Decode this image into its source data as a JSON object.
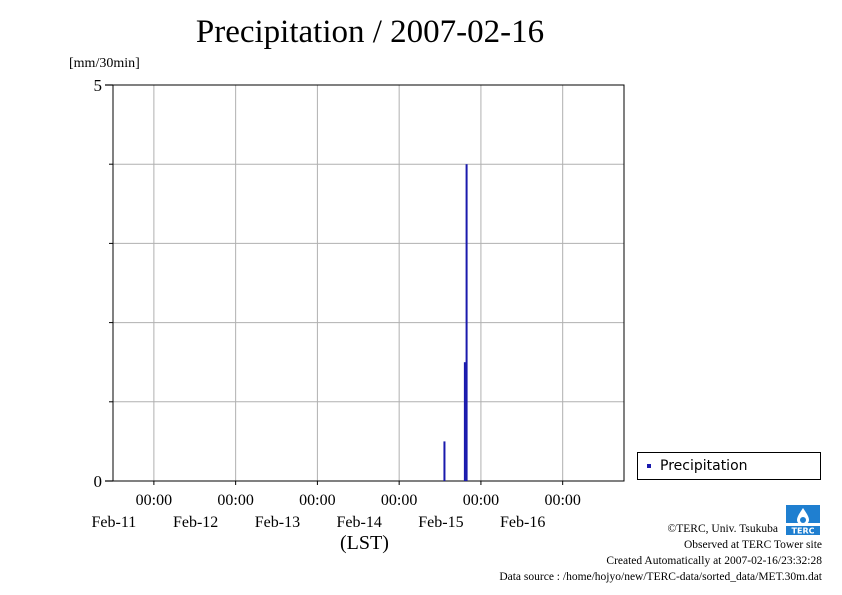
{
  "chart_data": {
    "type": "bar",
    "title": "Precipitation / 2007-02-16",
    "ylabel": "[mm/30min]",
    "xlabel": "(LST)",
    "ylim": [
      0,
      5
    ],
    "yticks_labeled": [
      "0",
      "5"
    ],
    "ygrid_step": 1,
    "xrange": [
      "2007-02-10T12:00",
      "2007-02-16T18:00"
    ],
    "xticks": [
      {
        "time": "2007-02-11T00:00",
        "time_label": "00:00",
        "date_label": "Feb-11"
      },
      {
        "time": "2007-02-12T00:00",
        "time_label": "00:00",
        "date_label": "Feb-12"
      },
      {
        "time": "2007-02-13T00:00",
        "time_label": "00:00",
        "date_label": "Feb-13"
      },
      {
        "time": "2007-02-14T00:00",
        "time_label": "00:00",
        "date_label": "Feb-14"
      },
      {
        "time": "2007-02-15T00:00",
        "time_label": "00:00",
        "date_label": "Feb-15"
      },
      {
        "time": "2007-02-16T00:00",
        "time_label": "00:00",
        "date_label": "Feb-16"
      }
    ],
    "grid": true,
    "legend_position": "bottom-right outside",
    "series": [
      {
        "name": "Precipitation",
        "color": "#1a1aad",
        "points": [
          {
            "t": "2007-02-14T13:00",
            "value": 0.5
          },
          {
            "t": "2007-02-14T19:00",
            "value": 1.5
          },
          {
            "t": "2007-02-14T19:30",
            "value": 4.0
          }
        ]
      }
    ]
  },
  "credits": {
    "copyright": "©TERC, Univ. Tsukuba",
    "observed": "Observed at TERC Tower site",
    "created": "Created Automatically at 2007-02-16/23:32:28",
    "source": "Data source : /home/hojyo/new/TERC-data/sorted_data/MET.30m.dat"
  },
  "logo": {
    "text": "TERC",
    "color": "#1f7fd0"
  }
}
